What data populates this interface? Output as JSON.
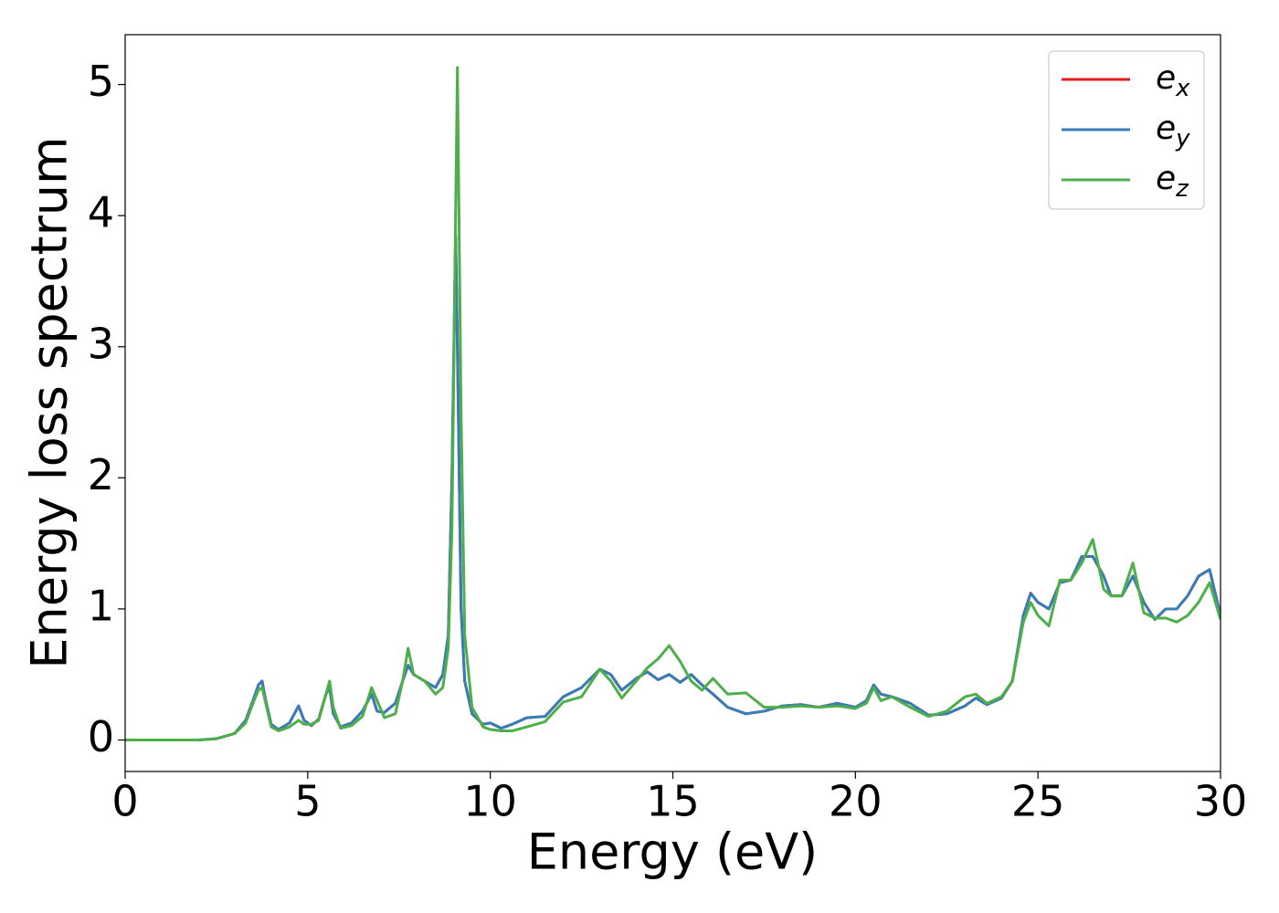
{
  "chart_data": {
    "type": "line",
    "xlabel": "Energy (eV)",
    "ylabel": "Energy loss spectrum",
    "x": [
      0,
      1,
      2,
      2.5,
      3,
      3.3,
      3.5,
      3.65,
      3.75,
      3.85,
      4.0,
      4.2,
      4.5,
      4.75,
      4.9,
      5.1,
      5.3,
      5.5,
      5.6,
      5.7,
      5.9,
      6.2,
      6.5,
      6.75,
      6.9,
      7.1,
      7.4,
      7.6,
      7.75,
      7.9,
      8.2,
      8.5,
      8.7,
      8.85,
      8.95,
      9.05,
      9.1,
      9.2,
      9.3,
      9.5,
      9.8,
      10.0,
      10.3,
      10.6,
      11.0,
      11.5,
      12.0,
      12.5,
      13.0,
      13.3,
      13.6,
      14.0,
      14.3,
      14.6,
      14.9,
      15.2,
      15.5,
      15.8,
      16.1,
      16.5,
      17.0,
      17.5,
      18.0,
      18.5,
      19.0,
      19.5,
      20.0,
      20.3,
      20.5,
      20.7,
      21.0,
      21.5,
      22.0,
      22.5,
      23.0,
      23.3,
      23.6,
      24.0,
      24.3,
      24.6,
      24.8,
      25.0,
      25.3,
      25.6,
      25.9,
      26.2,
      26.5,
      26.8,
      27.0,
      27.3,
      27.6,
      27.9,
      28.2,
      28.5,
      28.8,
      29.1,
      29.4,
      29.7,
      30.0
    ],
    "series": [
      {
        "name": "e_x",
        "color": "#e41a1c",
        "values": [
          0,
          0,
          0,
          0.01,
          0.05,
          0.15,
          0.3,
          0.42,
          0.45,
          0.3,
          0.12,
          0.08,
          0.13,
          0.26,
          0.15,
          0.11,
          0.16,
          0.35,
          0.4,
          0.2,
          0.1,
          0.13,
          0.22,
          0.35,
          0.22,
          0.21,
          0.28,
          0.45,
          0.57,
          0.5,
          0.45,
          0.4,
          0.5,
          0.8,
          2.0,
          3.85,
          3.0,
          1.0,
          0.45,
          0.2,
          0.12,
          0.13,
          0.09,
          0.12,
          0.17,
          0.18,
          0.33,
          0.4,
          0.54,
          0.5,
          0.38,
          0.47,
          0.52,
          0.46,
          0.5,
          0.44,
          0.5,
          0.42,
          0.35,
          0.25,
          0.2,
          0.22,
          0.26,
          0.27,
          0.25,
          0.28,
          0.25,
          0.3,
          0.42,
          0.35,
          0.33,
          0.28,
          0.19,
          0.2,
          0.26,
          0.32,
          0.27,
          0.32,
          0.45,
          0.95,
          1.12,
          1.05,
          1.0,
          1.2,
          1.22,
          1.4,
          1.4,
          1.25,
          1.1,
          1.1,
          1.25,
          1.05,
          0.92,
          1.0,
          1.0,
          1.1,
          1.25,
          1.3,
          0.95
        ]
      },
      {
        "name": "e_y",
        "color": "#377eb8",
        "values": [
          0,
          0,
          0,
          0.01,
          0.05,
          0.15,
          0.3,
          0.42,
          0.45,
          0.3,
          0.12,
          0.08,
          0.13,
          0.26,
          0.15,
          0.11,
          0.16,
          0.35,
          0.4,
          0.2,
          0.1,
          0.13,
          0.22,
          0.35,
          0.22,
          0.21,
          0.28,
          0.45,
          0.57,
          0.5,
          0.45,
          0.4,
          0.5,
          0.8,
          2.0,
          3.85,
          3.0,
          1.0,
          0.45,
          0.2,
          0.12,
          0.13,
          0.09,
          0.12,
          0.17,
          0.18,
          0.33,
          0.4,
          0.54,
          0.5,
          0.38,
          0.47,
          0.52,
          0.46,
          0.5,
          0.44,
          0.5,
          0.42,
          0.35,
          0.25,
          0.2,
          0.22,
          0.26,
          0.27,
          0.25,
          0.28,
          0.25,
          0.3,
          0.42,
          0.35,
          0.33,
          0.28,
          0.19,
          0.2,
          0.26,
          0.32,
          0.27,
          0.32,
          0.45,
          0.95,
          1.12,
          1.05,
          1.0,
          1.2,
          1.22,
          1.4,
          1.4,
          1.25,
          1.1,
          1.1,
          1.25,
          1.05,
          0.92,
          1.0,
          1.0,
          1.1,
          1.25,
          1.3,
          0.95
        ]
      },
      {
        "name": "e_z",
        "color": "#4daf4a",
        "values": [
          0,
          0,
          0,
          0.01,
          0.05,
          0.13,
          0.28,
          0.38,
          0.4,
          0.28,
          0.1,
          0.07,
          0.1,
          0.15,
          0.12,
          0.12,
          0.15,
          0.35,
          0.45,
          0.25,
          0.09,
          0.11,
          0.18,
          0.4,
          0.3,
          0.17,
          0.2,
          0.45,
          0.7,
          0.5,
          0.45,
          0.35,
          0.4,
          0.7,
          1.6,
          4.0,
          5.13,
          2.5,
          0.8,
          0.25,
          0.1,
          0.08,
          0.07,
          0.07,
          0.1,
          0.14,
          0.29,
          0.33,
          0.54,
          0.45,
          0.32,
          0.45,
          0.55,
          0.62,
          0.72,
          0.6,
          0.45,
          0.38,
          0.47,
          0.35,
          0.36,
          0.25,
          0.25,
          0.26,
          0.25,
          0.26,
          0.24,
          0.28,
          0.4,
          0.3,
          0.33,
          0.25,
          0.18,
          0.22,
          0.33,
          0.35,
          0.28,
          0.33,
          0.45,
          0.9,
          1.05,
          0.95,
          0.87,
          1.22,
          1.22,
          1.35,
          1.53,
          1.15,
          1.1,
          1.1,
          1.35,
          0.97,
          0.93,
          0.93,
          0.9,
          0.95,
          1.05,
          1.2,
          0.92
        ]
      }
    ],
    "xlim": [
      0,
      30
    ],
    "xticks": [
      0,
      5,
      10,
      15,
      20,
      25,
      30
    ],
    "ylim": [
      -0.24,
      5.38
    ],
    "yticks": [
      0,
      1,
      2,
      3,
      4,
      5
    ],
    "grid": false,
    "legend": "upper right"
  }
}
